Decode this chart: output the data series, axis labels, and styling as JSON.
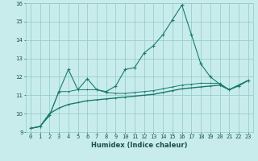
{
  "xlabel": "Humidex (Indice chaleur)",
  "x_values": [
    0,
    1,
    2,
    3,
    4,
    5,
    6,
    7,
    8,
    9,
    10,
    11,
    12,
    13,
    14,
    15,
    16,
    17,
    18,
    19,
    20,
    21,
    22,
    23
  ],
  "line1_y": [
    9.2,
    9.3,
    9.9,
    11.2,
    12.4,
    11.3,
    11.9,
    11.3,
    11.2,
    11.5,
    12.4,
    12.5,
    13.3,
    13.7,
    14.3,
    15.1,
    15.9,
    14.3,
    12.7,
    12.0,
    11.6,
    11.3,
    11.5,
    11.8
  ],
  "line2_y": [
    9.2,
    9.3,
    9.9,
    11.2,
    11.2,
    11.3,
    11.3,
    11.3,
    11.15,
    11.1,
    11.1,
    11.15,
    11.2,
    11.25,
    11.35,
    11.45,
    11.55,
    11.6,
    11.65,
    11.65,
    11.65,
    11.3,
    11.55,
    11.8
  ],
  "line3_y": [
    9.2,
    9.3,
    10.0,
    10.3,
    10.5,
    10.6,
    10.7,
    10.75,
    10.8,
    10.85,
    10.9,
    10.95,
    11.0,
    11.05,
    11.15,
    11.25,
    11.35,
    11.4,
    11.45,
    11.5,
    11.55,
    11.3,
    11.55,
    11.8
  ],
  "line_color": "#1a7a6e",
  "bg_color": "#c8ecec",
  "grid_color": "#8fc8c8",
  "ylim": [
    9,
    16
  ],
  "xlim_min": -0.5,
  "xlim_max": 23.5,
  "yticks": [
    9,
    10,
    11,
    12,
    13,
    14,
    15,
    16
  ],
  "xticks": [
    0,
    1,
    2,
    3,
    4,
    5,
    6,
    7,
    8,
    9,
    10,
    11,
    12,
    13,
    14,
    15,
    16,
    17,
    18,
    19,
    20,
    21,
    22,
    23
  ],
  "tick_fontsize": 5.0,
  "xlabel_fontsize": 6.0
}
